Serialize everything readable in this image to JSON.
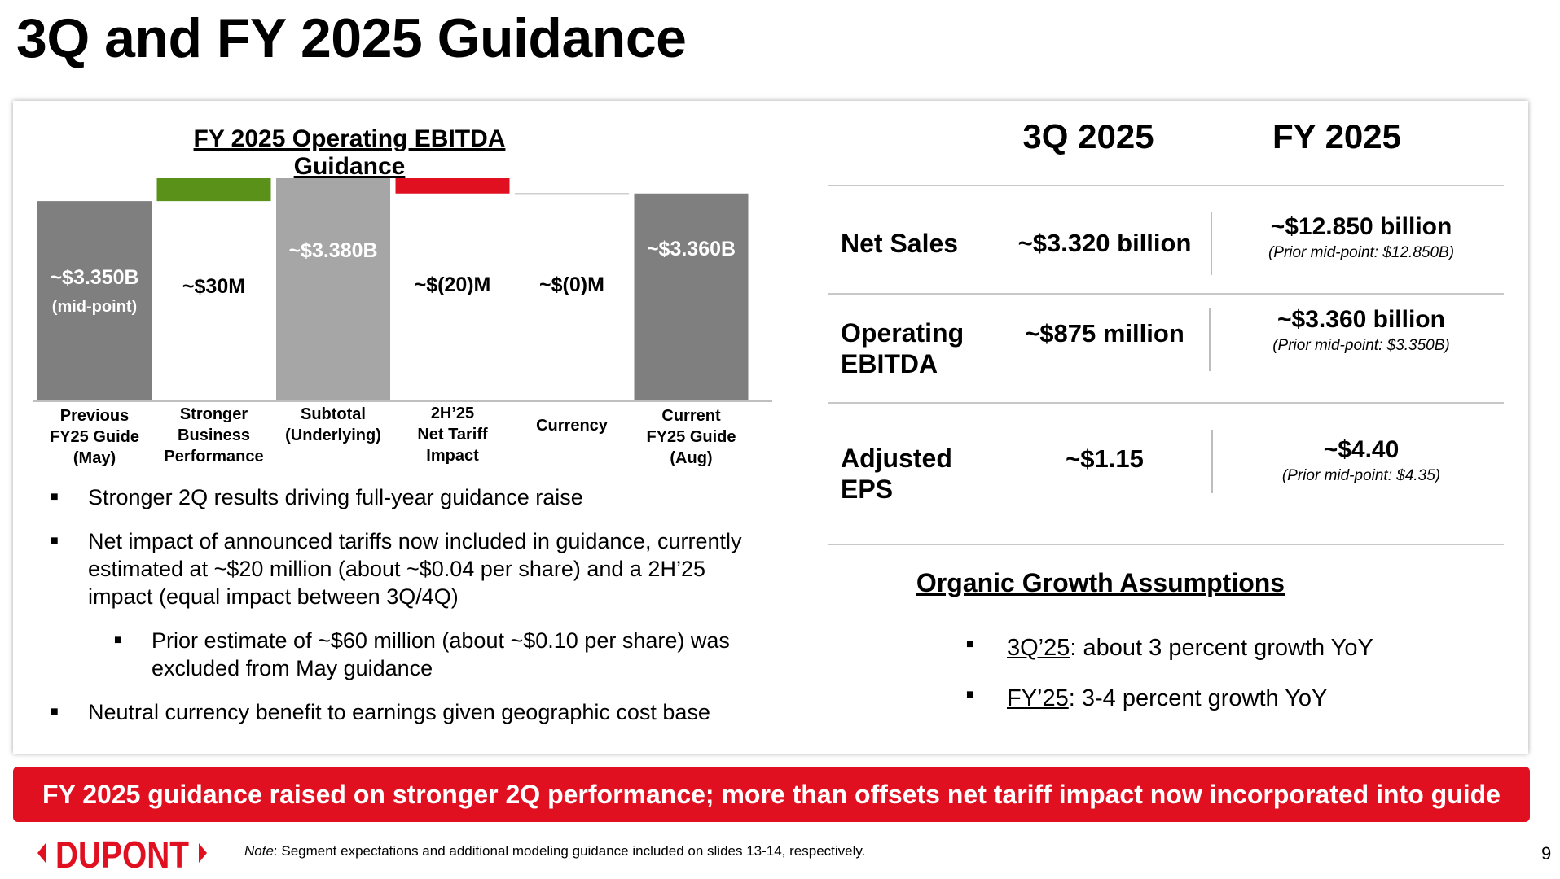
{
  "title": "3Q and FY 2025 Guidance",
  "chart_data": {
    "type": "waterfall",
    "title": "FY 2025 Operating EBITDA Guidance",
    "categories": [
      "Previous FY25 Guide (May)",
      "Stronger Business Performance",
      "Subtotal (Underlying)",
      "2H’25 Net Tariff Impact",
      "Currency",
      "Current FY25 Guide (Aug)"
    ],
    "category_lines": [
      [
        "Previous",
        "FY25 Guide",
        "(May)"
      ],
      [
        "Stronger",
        "Business",
        "Performance"
      ],
      [
        "Subtotal",
        "(Underlying)"
      ],
      [
        "2H’25",
        "Net Tariff",
        "Impact"
      ],
      [
        "Currency"
      ],
      [
        "Current",
        "FY25 Guide",
        "(Aug)"
      ]
    ],
    "values_musd": [
      3350,
      30,
      3380,
      -20,
      0,
      3360
    ],
    "kinds": [
      "total",
      "increase",
      "total",
      "decrease",
      "decrease",
      "total"
    ],
    "labels": [
      "~$3.350B",
      "~$30M",
      "~$3.380B",
      "~$(20)M",
      "~$(0)M",
      "~$3.360B"
    ],
    "sublabels": [
      "(mid-point)",
      "",
      "",
      "",
      "",
      ""
    ],
    "colors": {
      "total_dark": "#7f7f7f",
      "total_light": "#a6a6a6",
      "increase": "#5a9219",
      "decrease": "#e01020"
    }
  },
  "table": {
    "headers": [
      "3Q 2025",
      "FY 2025"
    ],
    "rows": [
      {
        "label_lines": [
          "Net Sales"
        ],
        "q3": "~$3.320 billion",
        "fy": "~$12.850 billion",
        "fy_note": "(Prior mid-point: $12.850B)"
      },
      {
        "label_lines": [
          "Operating",
          "EBITDA"
        ],
        "q3": "~$875 million",
        "fy": "~$3.360 billion",
        "fy_note": "(Prior mid-point: $3.350B)"
      },
      {
        "label_lines": [
          "Adjusted",
          "EPS"
        ],
        "q3": "~$1.15",
        "fy": "~$4.40",
        "fy_note": "(Prior mid-point: $4.35)"
      }
    ]
  },
  "bullets": [
    {
      "text": "Stronger 2Q results driving full-year guidance raise"
    },
    {
      "text": "Net impact of announced tariffs now included in guidance, currently estimated at ~$20 million (about ~$0.04 per share) and a 2H’25 impact (equal impact between 3Q/4Q)"
    },
    {
      "text": "Prior estimate of ~$60 million (about ~$0.10 per share) was excluded from May guidance"
    },
    {
      "text": "Neutral currency benefit to earnings given geographic cost base"
    }
  ],
  "bullet_symbol": "■",
  "organic": {
    "title": "Organic Growth Assumptions",
    "items": [
      {
        "key": "3Q’25",
        "text": ": about 3 percent growth YoY"
      },
      {
        "key": "FY’25",
        "text": ": 3-4 percent growth YoY"
      }
    ]
  },
  "banner": "FY 2025 guidance raised on stronger 2Q performance; more than offsets net tariff impact now incorporated into guide",
  "logo_text": "DUPONT",
  "logo_color": "#e01020",
  "footnote": {
    "prefix": "Note",
    "text": ": Segment expectations and additional modeling guidance included on slides 13-14, respectively."
  },
  "page_number": "9"
}
